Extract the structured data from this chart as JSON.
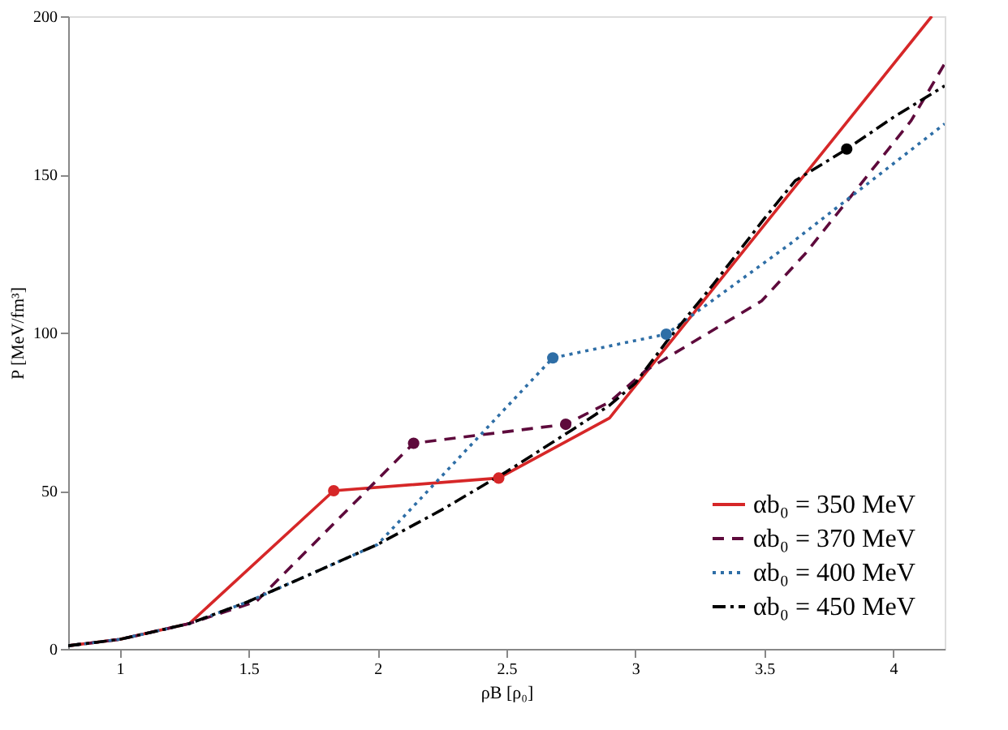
{
  "chart_data": {
    "type": "line",
    "xlabel": "ρB [ρ₀]",
    "ylabel": "P [MeV/fm³]",
    "xlim": [
      0.8,
      4.2
    ],
    "xticks": [
      1,
      1.5,
      2,
      2.5,
      3,
      3.5,
      4
    ],
    "ylim": [
      0,
      200
    ],
    "yticks": [
      0,
      50,
      100,
      150,
      200
    ],
    "grid": false,
    "legend": "bottom right",
    "series": [
      {
        "name": "αb₀ = 350 MeV",
        "color": "#d62728",
        "line_style": "solid",
        "x": [
          0.8,
          1.0,
          1.27,
          1.83,
          2.47,
          2.9,
          4.15
        ],
        "values": [
          1,
          3,
          8,
          50,
          54,
          73,
          200
        ]
      },
      {
        "name": "αb₀ = 370 MeV",
        "color": "#5e0a3c",
        "line_style": "dashed",
        "x": [
          0.8,
          1.0,
          1.27,
          1.53,
          2.14,
          2.73,
          2.9,
          3.04,
          3.49,
          3.66,
          4.07,
          4.2
        ],
        "values": [
          1,
          3,
          8,
          15,
          65,
          71,
          78,
          88,
          110,
          125,
          167,
          185
        ]
      },
      {
        "name": "αb₀ = 400 MeV",
        "color": "#2e6ea6",
        "line_style": "dotted",
        "x": [
          0.8,
          1.0,
          1.27,
          1.5,
          1.75,
          2.0,
          2.68,
          3.12,
          3.6,
          4.2
        ],
        "values": [
          1,
          3,
          8,
          15,
          24,
          33,
          92,
          99.5,
          128,
          166
        ]
      },
      {
        "name": "αb₀ = 450 MeV",
        "color": "#000000",
        "line_style": "dashdot",
        "x": [
          0.8,
          1.0,
          1.27,
          1.5,
          1.75,
          2.0,
          2.25,
          2.5,
          2.75,
          2.9,
          3.0,
          3.12,
          3.3,
          3.5,
          3.62,
          3.82,
          4.0,
          4.2
        ],
        "values": [
          1,
          3,
          8,
          15,
          24,
          33,
          44,
          56,
          69,
          77,
          84,
          97,
          115,
          136,
          148,
          158,
          168,
          178
        ]
      },
      {
        "type": "scatter",
        "color": "#d62728",
        "x": [
          1.83,
          2.47
        ],
        "values": [
          50,
          54
        ]
      },
      {
        "type": "scatter",
        "color": "#5e0a3c",
        "x": [
          2.14,
          2.73
        ],
        "values": [
          65,
          71
        ]
      },
      {
        "type": "scatter",
        "color": "#2e6ea6",
        "x": [
          2.68,
          3.12
        ],
        "values": [
          92,
          99.5
        ]
      },
      {
        "type": "scatter",
        "color": "#000000",
        "x": [
          3.82
        ],
        "values": [
          158
        ]
      }
    ]
  }
}
